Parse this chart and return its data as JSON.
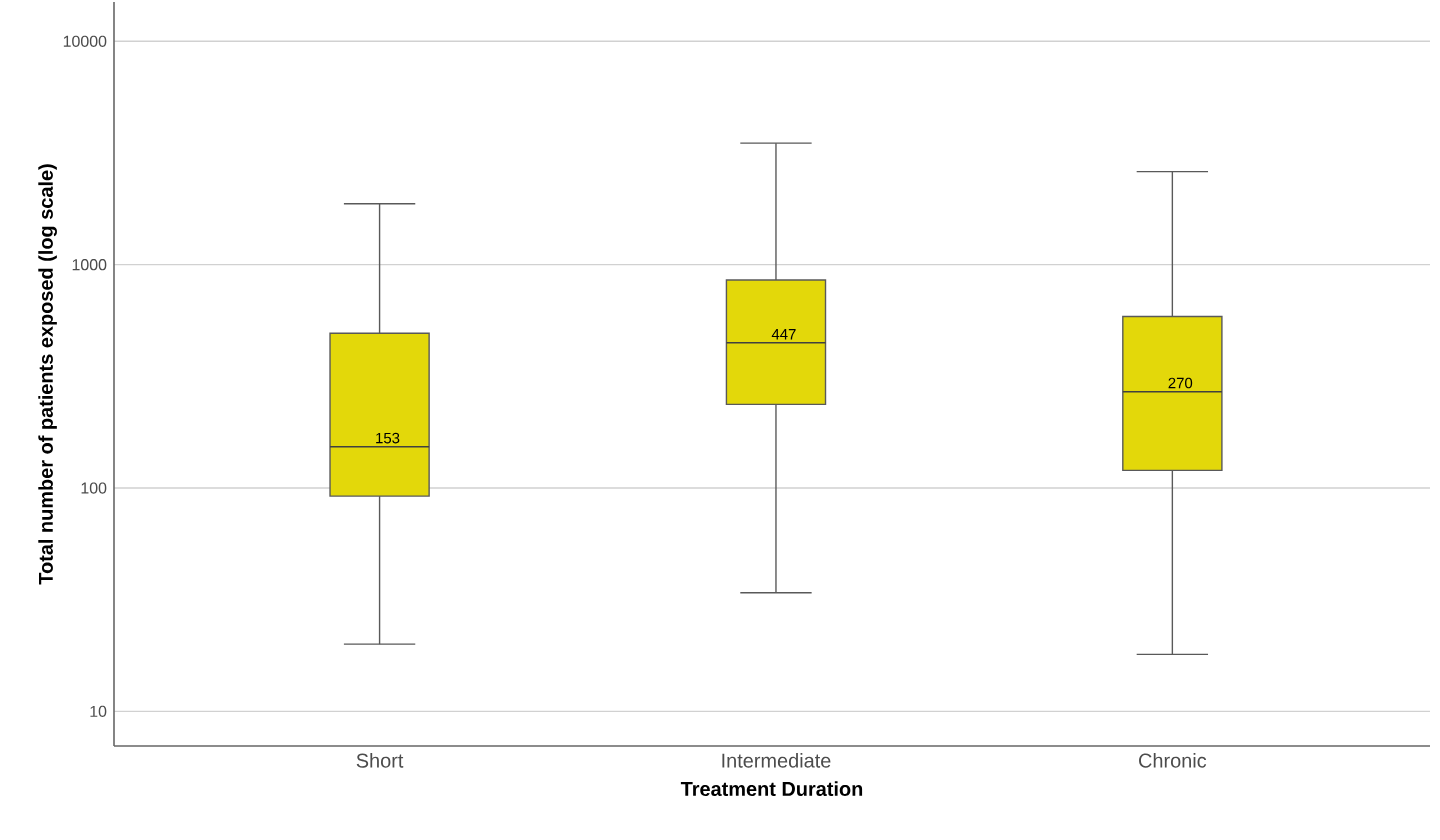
{
  "chart_data": {
    "type": "box",
    "xlabel": "Treatment Duration",
    "ylabel": "Total number of patients exposed (log scale)",
    "categories": [
      "Short",
      "Intermediate",
      "Chronic"
    ],
    "series": [
      {
        "color": "#e3d80a",
        "boxes": [
          {
            "low": 20,
            "q1": 92,
            "median": 153,
            "q3": 493,
            "high": 1875
          },
          {
            "low": 34,
            "q1": 237,
            "median": 447,
            "q3": 854,
            "high": 3500
          },
          {
            "low": 18,
            "q1": 120,
            "median": 270,
            "q3": 586,
            "high": 2610
          }
        ]
      }
    ],
    "annotations": [
      {
        "text": "153",
        "x": "Short",
        "y": 153
      },
      {
        "text": "447",
        "x": "Intermediate",
        "y": 447
      },
      {
        "text": "270",
        "x": "Chronic",
        "y": 270
      }
    ],
    "log": "y",
    "ylim": [
      7,
      15000
    ],
    "yticks": [
      10,
      100,
      1000,
      10000
    ],
    "grid": "y"
  }
}
